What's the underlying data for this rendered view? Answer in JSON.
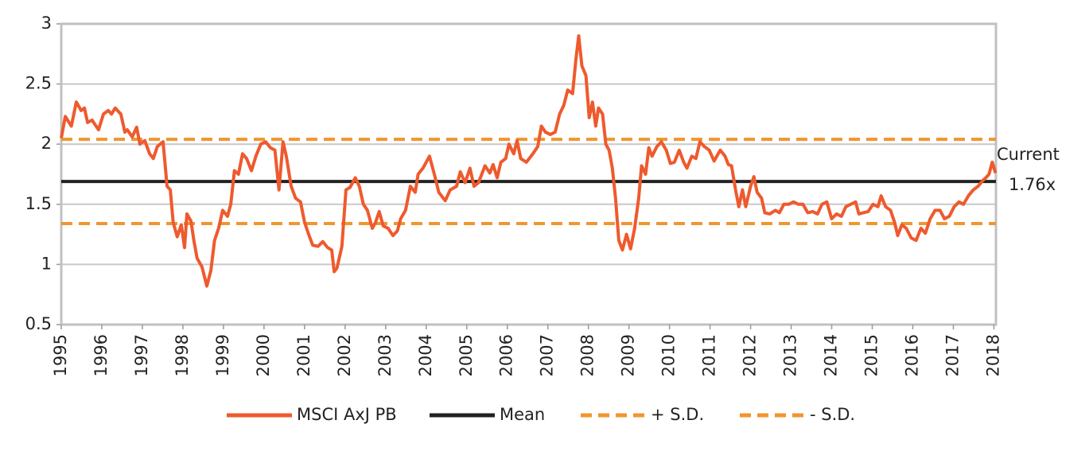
{
  "chart_data": {
    "type": "line",
    "x": [
      1995.0,
      1995.1,
      1995.25,
      1995.37,
      1995.49,
      1995.57,
      1995.65,
      1995.76,
      1995.92,
      1996.04,
      1996.16,
      1996.24,
      1996.33,
      1996.47,
      1996.57,
      1996.63,
      1996.75,
      1996.86,
      1996.94,
      1997.06,
      1997.18,
      1997.27,
      1997.37,
      1997.51,
      1997.61,
      1997.69,
      1997.76,
      1997.86,
      1997.96,
      1998.04,
      1998.1,
      1998.2,
      1998.27,
      1998.35,
      1998.47,
      1998.59,
      1998.69,
      1998.78,
      1998.88,
      1998.98,
      1999.1,
      1999.18,
      1999.27,
      1999.37,
      1999.47,
      1999.57,
      1999.69,
      1999.8,
      1999.92,
      2000.04,
      2000.16,
      2000.27,
      2000.37,
      2000.47,
      2000.55,
      2000.67,
      2000.78,
      2000.9,
      2001.0,
      2001.1,
      2001.2,
      2001.33,
      2001.45,
      2001.57,
      2001.67,
      2001.73,
      2001.8,
      2001.92,
      2002.02,
      2002.12,
      2002.25,
      2002.35,
      2002.45,
      2002.55,
      2002.67,
      2002.75,
      2002.84,
      2002.94,
      2003.06,
      2003.18,
      2003.29,
      2003.37,
      2003.49,
      2003.61,
      2003.73,
      2003.8,
      2003.92,
      2004.08,
      2004.2,
      2004.31,
      2004.47,
      2004.59,
      2004.75,
      2004.84,
      2004.96,
      2005.08,
      2005.18,
      2005.29,
      2005.45,
      2005.57,
      2005.65,
      2005.75,
      2005.84,
      2005.96,
      2006.04,
      2006.16,
      2006.24,
      2006.33,
      2006.47,
      2006.63,
      2006.75,
      2006.84,
      2006.94,
      2007.06,
      2007.18,
      2007.29,
      2007.39,
      2007.49,
      2007.61,
      2007.69,
      2007.76,
      2007.84,
      2007.94,
      2008.02,
      2008.1,
      2008.18,
      2008.25,
      2008.35,
      2008.43,
      2008.51,
      2008.59,
      2008.67,
      2008.75,
      2008.84,
      2008.94,
      2009.04,
      2009.14,
      2009.24,
      2009.31,
      2009.41,
      2009.49,
      2009.57,
      2009.69,
      2009.8,
      2009.92,
      2010.02,
      2010.12,
      2010.24,
      2010.35,
      2010.43,
      2010.55,
      2010.65,
      2010.75,
      2010.86,
      2010.98,
      2011.1,
      2011.25,
      2011.37,
      2011.45,
      2011.53,
      2011.63,
      2011.71,
      2011.8,
      2011.88,
      2012.0,
      2012.08,
      2012.16,
      2012.27,
      2012.35,
      2012.47,
      2012.61,
      2012.71,
      2012.82,
      2012.94,
      2013.06,
      2013.18,
      2013.29,
      2013.41,
      2013.53,
      2013.65,
      2013.76,
      2013.88,
      2014.0,
      2014.12,
      2014.24,
      2014.35,
      2014.47,
      2014.59,
      2014.67,
      2014.78,
      2014.9,
      2015.02,
      2015.14,
      2015.22,
      2015.33,
      2015.45,
      2015.55,
      2015.63,
      2015.73,
      2015.84,
      2015.96,
      2016.08,
      2016.2,
      2016.31,
      2016.43,
      2016.55,
      2016.67,
      2016.78,
      2016.9,
      2017.02,
      2017.14,
      2017.25,
      2017.37,
      2017.49,
      2017.61,
      2017.73,
      2017.8,
      2017.88,
      2017.96,
      2018.04
    ],
    "series": [
      {
        "name": "MSCI AxJ PB",
        "color": "#ee5a2e",
        "values": [
          2.05,
          2.23,
          2.15,
          2.35,
          2.28,
          2.3,
          2.18,
          2.2,
          2.12,
          2.25,
          2.28,
          2.25,
          2.3,
          2.25,
          2.1,
          2.12,
          2.06,
          2.14,
          2.0,
          2.03,
          1.92,
          1.88,
          1.98,
          2.02,
          1.65,
          1.62,
          1.35,
          1.23,
          1.33,
          1.14,
          1.42,
          1.36,
          1.2,
          1.05,
          0.98,
          0.82,
          0.95,
          1.2,
          1.3,
          1.45,
          1.4,
          1.5,
          1.78,
          1.75,
          1.92,
          1.88,
          1.78,
          1.9,
          2.0,
          2.02,
          1.97,
          1.95,
          1.62,
          2.02,
          1.9,
          1.65,
          1.55,
          1.52,
          1.35,
          1.25,
          1.16,
          1.15,
          1.19,
          1.14,
          1.12,
          0.94,
          0.97,
          1.15,
          1.62,
          1.64,
          1.72,
          1.65,
          1.5,
          1.45,
          1.3,
          1.35,
          1.44,
          1.32,
          1.3,
          1.24,
          1.28,
          1.38,
          1.45,
          1.65,
          1.6,
          1.75,
          1.8,
          1.9,
          1.75,
          1.6,
          1.53,
          1.62,
          1.65,
          1.77,
          1.68,
          1.8,
          1.65,
          1.68,
          1.82,
          1.76,
          1.83,
          1.72,
          1.85,
          1.88,
          2.0,
          1.92,
          2.03,
          1.88,
          1.85,
          1.92,
          1.98,
          2.15,
          2.1,
          2.08,
          2.1,
          2.25,
          2.32,
          2.45,
          2.42,
          2.7,
          2.9,
          2.65,
          2.57,
          2.22,
          2.35,
          2.15,
          2.3,
          2.25,
          2.0,
          1.95,
          1.8,
          1.55,
          1.2,
          1.12,
          1.25,
          1.13,
          1.3,
          1.55,
          1.82,
          1.75,
          1.97,
          1.9,
          1.98,
          2.02,
          1.95,
          1.84,
          1.85,
          1.95,
          1.85,
          1.8,
          1.9,
          1.88,
          2.02,
          1.98,
          1.95,
          1.86,
          1.95,
          1.9,
          1.83,
          1.82,
          1.62,
          1.48,
          1.62,
          1.48,
          1.65,
          1.73,
          1.6,
          1.55,
          1.43,
          1.42,
          1.45,
          1.43,
          1.5,
          1.5,
          1.52,
          1.5,
          1.5,
          1.43,
          1.44,
          1.42,
          1.5,
          1.52,
          1.38,
          1.42,
          1.4,
          1.48,
          1.5,
          1.52,
          1.42,
          1.43,
          1.44,
          1.5,
          1.48,
          1.57,
          1.48,
          1.45,
          1.35,
          1.24,
          1.33,
          1.3,
          1.22,
          1.2,
          1.3,
          1.26,
          1.38,
          1.45,
          1.45,
          1.38,
          1.4,
          1.48,
          1.52,
          1.5,
          1.57,
          1.62,
          1.65,
          1.7,
          1.72,
          1.75,
          1.85,
          1.76
        ]
      }
    ],
    "reference_lines": [
      {
        "name": "Mean",
        "value": 1.69,
        "color": "#222222",
        "dashed": false
      },
      {
        "name": "+ S.D.",
        "value": 2.04,
        "color": "#f0962e",
        "dashed": true
      },
      {
        "name": "- S.D.",
        "value": 1.34,
        "color": "#f0962e",
        "dashed": true
      }
    ],
    "annotations": [
      "Current",
      "1.76x"
    ],
    "xlim": [
      1995,
      2018.05
    ],
    "xticks": [
      1995,
      1996,
      1997,
      1998,
      1999,
      2000,
      2001,
      2002,
      2003,
      2004,
      2005,
      2006,
      2007,
      2008,
      2009,
      2010,
      2011,
      2012,
      2013,
      2014,
      2015,
      2016,
      2017,
      2018
    ],
    "ylim": [
      0.5,
      3.0
    ],
    "yticks": [
      0.5,
      1.0,
      1.5,
      2.0,
      2.5,
      3.0
    ],
    "grid": true,
    "legend": "bottom"
  }
}
